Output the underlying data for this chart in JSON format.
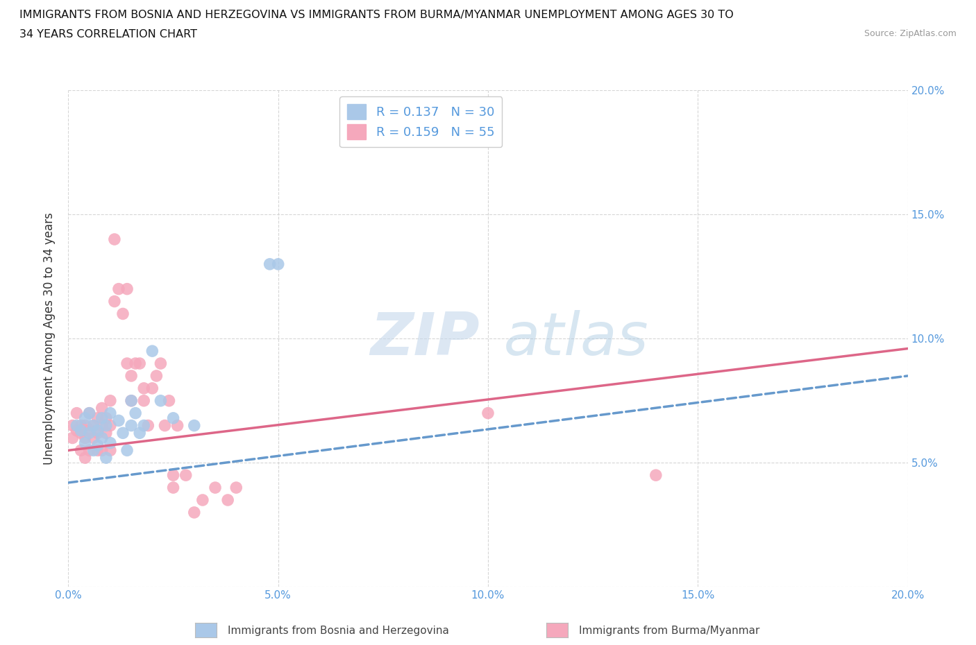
{
  "title_line1": "IMMIGRANTS FROM BOSNIA AND HERZEGOVINA VS IMMIGRANTS FROM BURMA/MYANMAR UNEMPLOYMENT AMONG AGES 30 TO",
  "title_line2": "34 YEARS CORRELATION CHART",
  "source_text": "Source: ZipAtlas.com",
  "ylabel": "Unemployment Among Ages 30 to 34 years",
  "xlim": [
    0.0,
    0.2
  ],
  "ylim": [
    0.0,
    0.2
  ],
  "xticks": [
    0.0,
    0.05,
    0.1,
    0.15,
    0.2
  ],
  "yticks": [
    0.0,
    0.05,
    0.1,
    0.15,
    0.2
  ],
  "xticklabels": [
    "0.0%",
    "5.0%",
    "10.0%",
    "15.0%",
    "20.0%"
  ],
  "right_yticklabels": [
    "",
    "5.0%",
    "10.0%",
    "15.0%",
    "20.0%"
  ],
  "watermark_zip": "ZIP",
  "watermark_atlas": "atlas",
  "bosnia_R": 0.137,
  "bosnia_N": 30,
  "burma_R": 0.159,
  "burma_N": 55,
  "bosnia_color": "#aac8e8",
  "burma_color": "#f5a8bc",
  "bosnia_line_color": "#6699cc",
  "burma_line_color": "#dd6688",
  "grid_color": "#cccccc",
  "title_color": "#111111",
  "axis_color": "#5599dd",
  "legend_label_bosnia": "Immigrants from Bosnia and Herzegovina",
  "legend_label_burma": "Immigrants from Burma/Myanmar",
  "bosnia_line_x0": 0.0,
  "bosnia_line_y0": 0.042,
  "bosnia_line_x1": 0.2,
  "bosnia_line_y1": 0.085,
  "burma_line_x0": 0.0,
  "burma_line_y0": 0.055,
  "burma_line_x1": 0.2,
  "burma_line_y1": 0.096,
  "bosnia_scatter_x": [
    0.002,
    0.003,
    0.004,
    0.004,
    0.005,
    0.005,
    0.006,
    0.006,
    0.007,
    0.007,
    0.008,
    0.008,
    0.009,
    0.009,
    0.01,
    0.01,
    0.012,
    0.013,
    0.014,
    0.015,
    0.015,
    0.016,
    0.017,
    0.018,
    0.02,
    0.022,
    0.025,
    0.03,
    0.048,
    0.05
  ],
  "bosnia_scatter_y": [
    0.065,
    0.063,
    0.068,
    0.058,
    0.07,
    0.062,
    0.065,
    0.055,
    0.063,
    0.057,
    0.068,
    0.06,
    0.065,
    0.052,
    0.07,
    0.058,
    0.067,
    0.062,
    0.055,
    0.075,
    0.065,
    0.07,
    0.062,
    0.065,
    0.095,
    0.075,
    0.068,
    0.065,
    0.13,
    0.13
  ],
  "burma_scatter_x": [
    0.001,
    0.001,
    0.002,
    0.002,
    0.003,
    0.003,
    0.003,
    0.004,
    0.004,
    0.004,
    0.005,
    0.005,
    0.005,
    0.006,
    0.006,
    0.007,
    0.007,
    0.007,
    0.008,
    0.008,
    0.008,
    0.009,
    0.009,
    0.01,
    0.01,
    0.01,
    0.011,
    0.011,
    0.012,
    0.013,
    0.014,
    0.014,
    0.015,
    0.015,
    0.016,
    0.017,
    0.018,
    0.018,
    0.019,
    0.02,
    0.021,
    0.022,
    0.023,
    0.024,
    0.025,
    0.025,
    0.026,
    0.028,
    0.03,
    0.032,
    0.035,
    0.038,
    0.04,
    0.1,
    0.14
  ],
  "burma_scatter_y": [
    0.065,
    0.06,
    0.07,
    0.063,
    0.065,
    0.062,
    0.055,
    0.065,
    0.06,
    0.052,
    0.07,
    0.063,
    0.055,
    0.065,
    0.06,
    0.068,
    0.062,
    0.055,
    0.072,
    0.065,
    0.055,
    0.068,
    0.062,
    0.075,
    0.065,
    0.055,
    0.14,
    0.115,
    0.12,
    0.11,
    0.12,
    0.09,
    0.085,
    0.075,
    0.09,
    0.09,
    0.08,
    0.075,
    0.065,
    0.08,
    0.085,
    0.09,
    0.065,
    0.075,
    0.045,
    0.04,
    0.065,
    0.045,
    0.03,
    0.035,
    0.04,
    0.035,
    0.04,
    0.07,
    0.045
  ]
}
